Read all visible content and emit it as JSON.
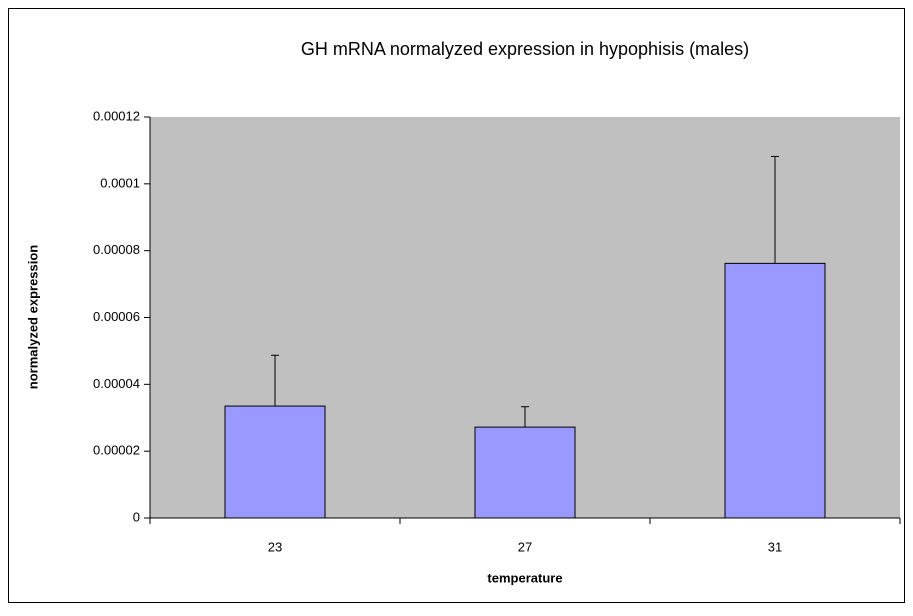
{
  "chart_data": {
    "type": "bar",
    "title": "GH mRNA normalyzed expression in hypophisis (males)",
    "x_label": "temperature",
    "y_label": "normalyzed expression",
    "categories": [
      "23",
      "27",
      "31"
    ],
    "values": [
      3.35e-05,
      2.72e-05,
      7.62e-05
    ],
    "errors": [
      1.52e-05,
      6.1e-06,
      3.2e-05
    ],
    "color": "#9999ff",
    "plot_background": "#c0c0c0",
    "ylim": [
      0,
      0.00012
    ],
    "yticks": [
      0,
      2e-05,
      4e-05,
      6e-05,
      8e-05,
      0.0001,
      0.00012
    ],
    "grid": false
  }
}
